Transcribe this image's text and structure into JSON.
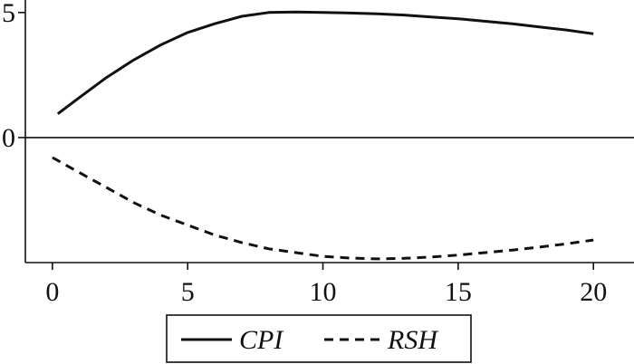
{
  "chart_data": {
    "type": "line",
    "title": "",
    "xlabel": "",
    "ylabel": "",
    "xlim": [
      -1,
      21.5
    ],
    "ylim": [
      -5,
      5.5
    ],
    "x_ticks": [
      0,
      5,
      10,
      15,
      20
    ],
    "y_ticks": [
      0,
      5
    ],
    "x_tick_labels": [
      "0",
      "5",
      "10",
      "15",
      "20"
    ],
    "y_tick_labels": [
      "0",
      "5"
    ],
    "zero_line": true,
    "grid": false,
    "legend_position": "bottom",
    "series": [
      {
        "name": "CPI",
        "style": "solid",
        "color": "#111111",
        "x": [
          0.2,
          1,
          2,
          3,
          4,
          5,
          6,
          7,
          8,
          9,
          10,
          11,
          12,
          13,
          14,
          15,
          16,
          17,
          18,
          19,
          20
        ],
        "y": [
          0.95,
          1.6,
          2.4,
          3.1,
          3.7,
          4.2,
          4.55,
          4.85,
          5.0,
          5.02,
          5.0,
          4.98,
          4.95,
          4.9,
          4.82,
          4.75,
          4.65,
          4.55,
          4.42,
          4.3,
          4.15
        ]
      },
      {
        "name": "RSH",
        "style": "dashed",
        "color": "#111111",
        "x": [
          0,
          1,
          2,
          3,
          4,
          5,
          6,
          7,
          8,
          9,
          10,
          11,
          12,
          13,
          14,
          15,
          16,
          17,
          18,
          19,
          20
        ],
        "y": [
          -0.8,
          -1.4,
          -2.0,
          -2.6,
          -3.1,
          -3.5,
          -3.9,
          -4.2,
          -4.45,
          -4.6,
          -4.75,
          -4.82,
          -4.85,
          -4.83,
          -4.78,
          -4.7,
          -4.6,
          -4.5,
          -4.38,
          -4.25,
          -4.1
        ]
      }
    ]
  }
}
